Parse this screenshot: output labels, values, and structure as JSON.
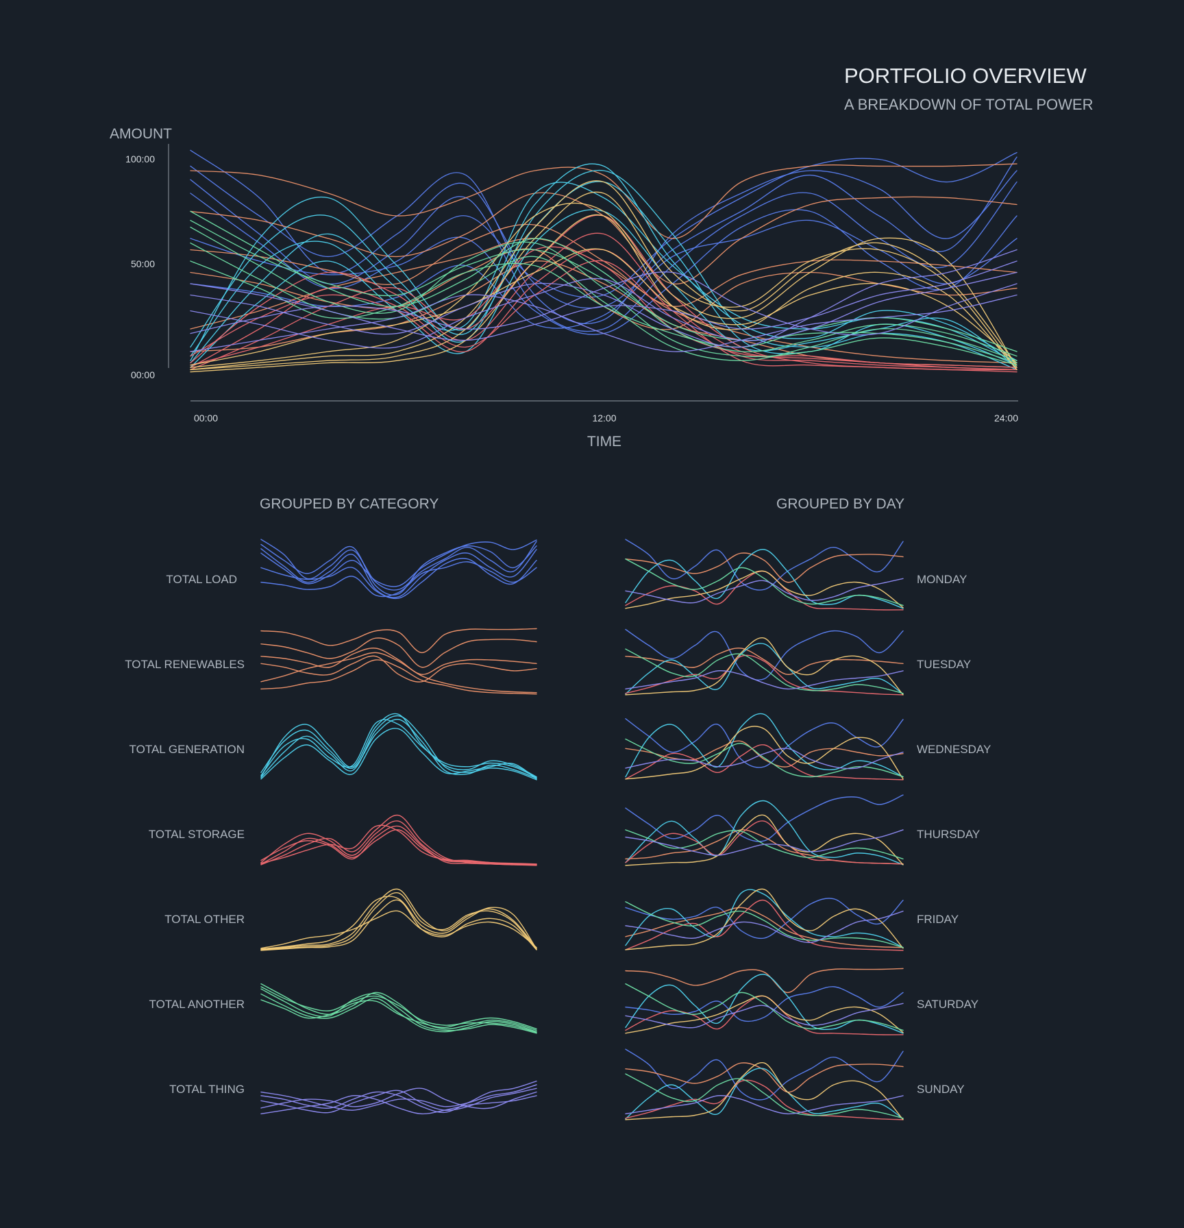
{
  "header": {
    "title": "PORTFOLIO OVERVIEW",
    "subtitle": "A BREAKDOWN OF TOTAL POWER"
  },
  "main_chart": {
    "ylabel": "AMOUNT",
    "xlabel": "TIME",
    "y_tick_labels": [
      "100:00",
      "50:00",
      "00:00"
    ],
    "x_tick_labels": [
      "00:00",
      "12:00",
      "24:00"
    ]
  },
  "category_panel": {
    "title": "GROUPED BY CATEGORY",
    "rows": [
      "TOTAL LOAD",
      "TOTAL RENEWABLES",
      "TOTAL GENERATION",
      "TOTAL STORAGE",
      "TOTAL OTHER",
      "TOTAL ANOTHER",
      "TOTAL THING"
    ]
  },
  "day_panel": {
    "title": "GROUPED BY DAY",
    "rows": [
      "MONDAY",
      "TUESDAY",
      "WEDNESDAY",
      "THURSDAY",
      "FRIDAY",
      "SATURDAY",
      "SUNDAY"
    ]
  },
  "colors": {
    "background": "#181f28",
    "total_load": "#5b7ff0",
    "total_renewables": "#f0956c",
    "total_generation": "#4fd3ee",
    "total_storage": "#ee6a70",
    "total_other": "#f5cd79",
    "total_another": "#6fe0a6",
    "total_thing": "#8e8bf2"
  },
  "chart_data": {
    "type": "line",
    "x": [
      0,
      2,
      4,
      6,
      8,
      10,
      12,
      14,
      16,
      18,
      20,
      22,
      24
    ],
    "ylim": [
      0,
      100
    ],
    "x_range": [
      0,
      24
    ],
    "grid": false,
    "series": [
      {
        "category": "total_load",
        "color": "#5b7ff0",
        "values": [
          99,
          78,
          45,
          62,
          84,
          40,
          30,
          55,
          72,
          88,
          70,
          55,
          96
        ]
      },
      {
        "category": "total_load",
        "color": "#5b7ff0",
        "values": [
          92,
          70,
          52,
          70,
          88,
          35,
          24,
          62,
          80,
          90,
          82,
          60,
          90
        ]
      },
      {
        "category": "total_load",
        "color": "#5b7ff0",
        "values": [
          86,
          62,
          40,
          55,
          78,
          30,
          20,
          48,
          70,
          80,
          60,
          48,
          85
        ]
      },
      {
        "category": "total_load",
        "color": "#5b7ff0",
        "values": [
          80,
          58,
          38,
          50,
          70,
          42,
          35,
          60,
          78,
          92,
          95,
          85,
          98
        ]
      },
      {
        "category": "total_load",
        "color": "#5b7ff0",
        "values": [
          60,
          50,
          44,
          48,
          60,
          28,
          18,
          40,
          65,
          72,
          50,
          38,
          70
        ]
      },
      {
        "category": "total_load",
        "color": "#5b7ff0",
        "values": [
          40,
          36,
          30,
          34,
          48,
          22,
          26,
          52,
          60,
          68,
          55,
          40,
          60
        ]
      },
      {
        "category": "total_renewables",
        "color": "#f0956c",
        "values": [
          90,
          88,
          80,
          70,
          78,
          90,
          88,
          60,
          85,
          92,
          92,
          92,
          93
        ]
      },
      {
        "category": "total_renewables",
        "color": "#f0956c",
        "values": [
          72,
          68,
          60,
          52,
          62,
          80,
          70,
          40,
          60,
          75,
          78,
          78,
          75
        ]
      },
      {
        "category": "total_renewables",
        "color": "#f0956c",
        "values": [
          55,
          52,
          46,
          40,
          58,
          66,
          50,
          30,
          44,
          50,
          50,
          48,
          45
        ]
      },
      {
        "category": "total_renewables",
        "color": "#f0956c",
        "values": [
          45,
          40,
          32,
          30,
          45,
          55,
          30,
          20,
          40,
          45,
          40,
          35,
          38
        ]
      },
      {
        "category": "total_renewables",
        "color": "#f0956c",
        "values": [
          10,
          12,
          18,
          22,
          35,
          50,
          40,
          22,
          15,
          8,
          5,
          4,
          3
        ]
      },
      {
        "category": "total_renewables",
        "color": "#f0956c",
        "values": [
          20,
          28,
          38,
          45,
          52,
          60,
          48,
          28,
          18,
          12,
          8,
          6,
          5
        ]
      },
      {
        "category": "total_generation",
        "color": "#4fd3ee",
        "values": [
          5,
          40,
          62,
          38,
          15,
          70,
          90,
          62,
          20,
          12,
          18,
          14,
          2
        ]
      },
      {
        "category": "total_generation",
        "color": "#4fd3ee",
        "values": [
          8,
          48,
          58,
          32,
          22,
          80,
          78,
          48,
          25,
          20,
          25,
          20,
          5
        ]
      },
      {
        "category": "total_generation",
        "color": "#4fd3ee",
        "values": [
          12,
          55,
          70,
          42,
          18,
          65,
          85,
          55,
          15,
          10,
          22,
          16,
          4
        ]
      },
      {
        "category": "total_generation",
        "color": "#4fd3ee",
        "values": [
          3,
          32,
          50,
          28,
          10,
          58,
          72,
          40,
          12,
          14,
          20,
          24,
          3
        ]
      },
      {
        "category": "total_generation",
        "color": "#4fd3ee",
        "values": [
          6,
          60,
          78,
          48,
          20,
          75,
          92,
          50,
          22,
          16,
          28,
          22,
          6
        ]
      },
      {
        "category": "total_storage",
        "color": "#ee6a70",
        "values": [
          3,
          20,
          38,
          30,
          12,
          35,
          50,
          25,
          8,
          6,
          4,
          3,
          2
        ]
      },
      {
        "category": "total_storage",
        "color": "#ee6a70",
        "values": [
          5,
          30,
          45,
          35,
          15,
          45,
          62,
          30,
          10,
          8,
          5,
          4,
          3
        ]
      },
      {
        "category": "total_storage",
        "color": "#ee6a70",
        "values": [
          2,
          15,
          30,
          38,
          20,
          50,
          70,
          35,
          12,
          5,
          3,
          2,
          1
        ]
      },
      {
        "category": "total_storage",
        "color": "#ee6a70",
        "values": [
          8,
          25,
          35,
          28,
          10,
          40,
          55,
          28,
          6,
          4,
          3,
          2,
          2
        ]
      },
      {
        "category": "total_storage",
        "color": "#ee6a70",
        "values": [
          4,
          12,
          22,
          30,
          25,
          55,
          48,
          20,
          9,
          7,
          5,
          3,
          2
        ]
      },
      {
        "category": "total_other",
        "color": "#f5cd79",
        "values": [
          2,
          4,
          6,
          8,
          20,
          60,
          80,
          40,
          30,
          50,
          55,
          40,
          2
        ]
      },
      {
        "category": "total_other",
        "color": "#f5cd79",
        "values": [
          3,
          6,
          10,
          15,
          35,
          70,
          72,
          35,
          25,
          45,
          60,
          50,
          3
        ]
      },
      {
        "category": "total_other",
        "color": "#f5cd79",
        "values": [
          1,
          3,
          5,
          6,
          15,
          50,
          70,
          30,
          20,
          38,
          45,
          35,
          2
        ]
      },
      {
        "category": "total_other",
        "color": "#f5cd79",
        "values": [
          2,
          5,
          8,
          10,
          25,
          65,
          85,
          45,
          28,
          48,
          58,
          42,
          4
        ]
      },
      {
        "category": "total_other",
        "color": "#f5cd79",
        "values": [
          4,
          10,
          18,
          22,
          30,
          45,
          55,
          30,
          22,
          35,
          40,
          30,
          5
        ]
      },
      {
        "category": "total_another",
        "color": "#6fe0a6",
        "values": [
          72,
          55,
          38,
          30,
          42,
          60,
          45,
          20,
          10,
          15,
          22,
          18,
          8
        ]
      },
      {
        "category": "total_another",
        "color": "#6fe0a6",
        "values": [
          65,
          48,
          32,
          28,
          50,
          58,
          38,
          15,
          8,
          10,
          16,
          12,
          4
        ]
      },
      {
        "category": "total_another",
        "color": "#6fe0a6",
        "values": [
          58,
          42,
          28,
          25,
          38,
          52,
          32,
          12,
          6,
          12,
          20,
          16,
          6
        ]
      },
      {
        "category": "total_another",
        "color": "#6fe0a6",
        "values": [
          50,
          38,
          25,
          30,
          45,
          48,
          30,
          18,
          12,
          20,
          25,
          20,
          10
        ]
      },
      {
        "category": "total_another",
        "color": "#6fe0a6",
        "values": [
          68,
          52,
          40,
          35,
          48,
          55,
          42,
          22,
          15,
          18,
          18,
          14,
          5
        ]
      },
      {
        "category": "total_thing",
        "color": "#8e8bf2",
        "values": [
          35,
          30,
          22,
          18,
          30,
          40,
          35,
          20,
          12,
          25,
          40,
          45,
          55
        ]
      },
      {
        "category": "total_thing",
        "color": "#8e8bf2",
        "values": [
          28,
          22,
          15,
          12,
          25,
          35,
          42,
          25,
          15,
          20,
          32,
          38,
          45
        ]
      },
      {
        "category": "total_thing",
        "color": "#8e8bf2",
        "values": [
          10,
          15,
          20,
          25,
          35,
          30,
          18,
          10,
          15,
          22,
          25,
          28,
          35
        ]
      },
      {
        "category": "total_thing",
        "color": "#8e8bf2",
        "values": [
          18,
          25,
          30,
          28,
          20,
          25,
          38,
          45,
          30,
          20,
          18,
          30,
          40
        ]
      },
      {
        "category": "total_thing",
        "color": "#8e8bf2",
        "values": [
          40,
          35,
          28,
          20,
          15,
          22,
          30,
          28,
          20,
          25,
          35,
          40,
          50
        ]
      }
    ]
  }
}
